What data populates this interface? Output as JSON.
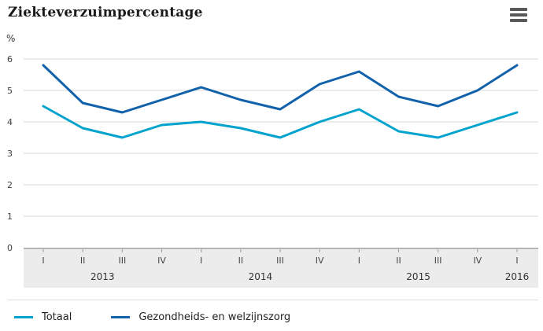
{
  "header": {
    "title": "Ziekteverzuimpercentage"
  },
  "chart_data": {
    "type": "line",
    "title": "Ziekteverzuimpercentage",
    "unit_label": "%",
    "ylabel": "%",
    "xlabel": "",
    "ylim": [
      0,
      6
    ],
    "y_ticks": [
      0,
      1,
      2,
      3,
      4,
      5,
      6
    ],
    "grid": "horizontal",
    "legend_position": "bottom",
    "x_categories": [
      "I",
      "II",
      "III",
      "IV",
      "I",
      "II",
      "III",
      "IV",
      "I",
      "II",
      "III",
      "IV",
      "I"
    ],
    "year_groups": [
      {
        "label": "2013",
        "start": 0,
        "end": 3
      },
      {
        "label": "2014",
        "start": 4,
        "end": 7
      },
      {
        "label": "2015",
        "start": 8,
        "end": 11
      },
      {
        "label": "2016",
        "start": 12,
        "end": 12
      }
    ],
    "series": [
      {
        "name": "Totaal",
        "color": "#00a3ce",
        "values": [
          4.5,
          3.8,
          3.5,
          3.9,
          4.0,
          3.8,
          3.5,
          4.0,
          4.4,
          3.7,
          3.5,
          3.9,
          4.3
        ]
      },
      {
        "name": "Gezondheids- en welzijnszorg",
        "color": "#1262ab",
        "values": [
          5.8,
          4.6,
          4.3,
          4.7,
          5.1,
          4.7,
          4.4,
          5.2,
          5.6,
          4.8,
          4.5,
          5.0,
          5.8
        ]
      }
    ]
  }
}
